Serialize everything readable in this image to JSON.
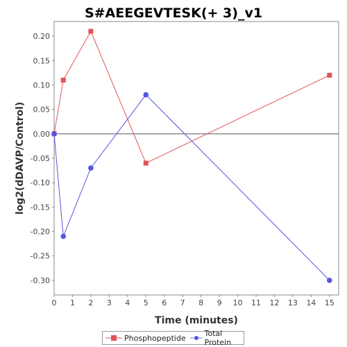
{
  "chart_data": {
    "type": "line",
    "title": "S#AEEGEVTESK(+ 3)_v1",
    "xlabel": "Time (minutes)",
    "ylabel": "log2(dDAVP/Control)",
    "xlim": [
      0,
      15.5
    ],
    "ylim": [
      -0.33,
      0.23
    ],
    "xticks": [
      0,
      1,
      2,
      3,
      4,
      5,
      6,
      7,
      8,
      9,
      10,
      11,
      12,
      13,
      14,
      15
    ],
    "yticks": [
      0.2,
      0.15,
      0.1,
      0.05,
      0.0,
      -0.05,
      -0.1,
      -0.15,
      -0.2,
      -0.25,
      -0.3
    ],
    "ytick_labels": [
      "0.20",
      "0.15",
      "0.10",
      "0.05",
      "0.00",
      "-0.05",
      "-0.10",
      "-0.15",
      "-0.20",
      "-0.25",
      "-0.30"
    ],
    "zero_line": true,
    "grid": false,
    "legend_position": "bottom-center",
    "series": [
      {
        "name": "Phosphopeptide",
        "color": "#e05555",
        "marker": "square",
        "x": [
          0,
          0.5,
          2,
          5,
          15
        ],
        "values": [
          0.0,
          0.11,
          0.21,
          -0.06,
          0.12
        ]
      },
      {
        "name": "Total Protein",
        "color": "#5555e0",
        "marker": "circle",
        "x": [
          0,
          0.5,
          2,
          5,
          15
        ],
        "values": [
          0.0,
          -0.21,
          -0.07,
          0.08,
          -0.3
        ]
      }
    ]
  }
}
